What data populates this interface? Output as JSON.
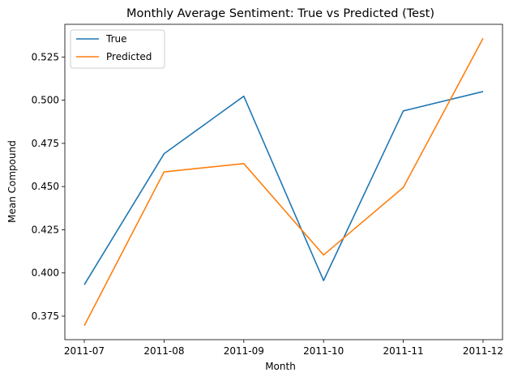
{
  "chart_data": {
    "type": "line",
    "title": "Monthly Average Sentiment: True vs Predicted (Test)",
    "xlabel": "Month",
    "ylabel": "Mean Compound",
    "categories": [
      "2011-07",
      "2011-08",
      "2011-09",
      "2011-10",
      "2011-11",
      "2011-12"
    ],
    "series": [
      {
        "name": "True",
        "color": "#1f77b4",
        "values": [
          0.3932,
          0.469,
          0.5023,
          0.3956,
          0.4938,
          0.505
        ]
      },
      {
        "name": "Predicted",
        "color": "#ff7f0e",
        "values": [
          0.3695,
          0.4585,
          0.4633,
          0.4104,
          0.4495,
          0.5358
        ]
      }
    ],
    "ylim": [
      0.3614,
      0.5439
    ],
    "yticks": [
      "0.375",
      "0.400",
      "0.425",
      "0.450",
      "0.475",
      "0.500",
      "0.525"
    ],
    "grid": false,
    "legend_position": "top-left"
  }
}
